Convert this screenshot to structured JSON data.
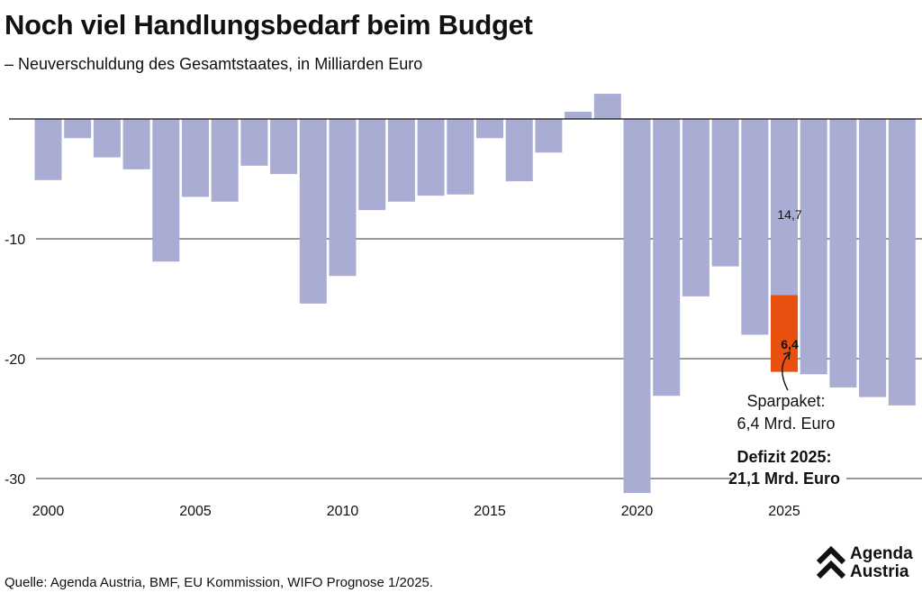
{
  "header": {
    "title": "Noch viel Handlungsbedarf beim Budget",
    "subtitle": "– Neuverschuldung des Gesamtstaates, in Milliarden Euro"
  },
  "footer": {
    "source": "Quelle: Agenda Austria, BMF, EU Kommission, WIFO Prognose 1/2025.",
    "logo_line1": "Agenda",
    "logo_line2": "Austria"
  },
  "colors": {
    "bar": "#a9acd3",
    "highlight": "#e8500f",
    "axis": "#111111",
    "grid": "#333333"
  },
  "annotations": {
    "remaining_label": "14,7",
    "sparpaket_label": "6,4",
    "sparpaket_line1": "Sparpaket:",
    "sparpaket_line2": "6,4 Mrd. Euro",
    "defizit_line1": "Defizit 2025:",
    "defizit_line2": "21,1 Mrd. Euro"
  },
  "chart_data": {
    "type": "bar",
    "categories": [
      2000,
      2001,
      2002,
      2003,
      2004,
      2005,
      2006,
      2007,
      2008,
      2009,
      2010,
      2011,
      2012,
      2013,
      2014,
      2015,
      2016,
      2017,
      2018,
      2019,
      2020,
      2021,
      2022,
      2023,
      2024,
      2025,
      2026,
      2027,
      2028,
      2029
    ],
    "values": [
      -5.1,
      -1.6,
      -3.2,
      -4.2,
      -11.9,
      -6.5,
      -6.9,
      -3.9,
      -4.6,
      -15.4,
      -13.1,
      -7.6,
      -6.9,
      -6.4,
      -6.3,
      -1.6,
      -5.2,
      -2.8,
      0.6,
      2.1,
      -31.2,
      -23.1,
      -14.8,
      -12.3,
      -18.0,
      -21.1,
      -21.3,
      -22.4,
      -23.2,
      -23.9
    ],
    "highlight": {
      "category": 2025,
      "base": -14.7,
      "amount": -6.4
    },
    "xticks": [
      2000,
      2005,
      2010,
      2015,
      2020,
      2025
    ],
    "yticks": [
      -10,
      -20,
      -30
    ],
    "ylim": [
      -32,
      2.5
    ],
    "grid": true,
    "xlabel": "",
    "ylabel": ""
  }
}
